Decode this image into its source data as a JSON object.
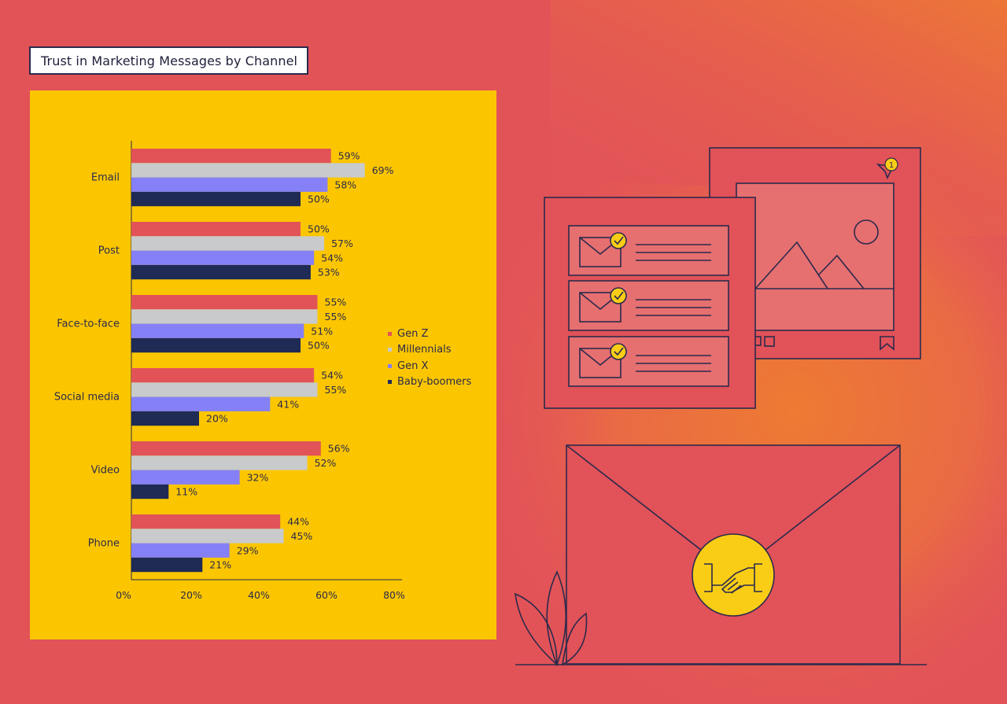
{
  "title": "Trust in Marketing Messages by Channel",
  "colors": {
    "background": "#e25358",
    "orange_glow": "#ee7a33",
    "panel": "#fbc600",
    "ink": "#2b2a4c",
    "illustration_red": "#e15259",
    "illustration_light": "#e66f70",
    "seal": "#f9cd16"
  },
  "illustration": {
    "notification_count": "1",
    "icons": [
      "send-icon",
      "bookmark-icon",
      "mail-icon",
      "check-icon",
      "handshake-icon",
      "mountain-icon",
      "sun-icon",
      "leaf-icon"
    ]
  },
  "chart_data": {
    "type": "bar",
    "orientation": "horizontal",
    "title": "Trust in Marketing Messages by Channel",
    "categories": [
      "Email",
      "Post",
      "Face-to-face",
      "Social media",
      "Video",
      "Phone"
    ],
    "series": [
      {
        "name": "Gen Z",
        "color": "#e25358",
        "values": [
          59,
          50,
          55,
          54,
          56,
          44
        ]
      },
      {
        "name": "Millennials",
        "color": "#c8cacb",
        "values": [
          69,
          57,
          55,
          55,
          52,
          45
        ]
      },
      {
        "name": "Gen X",
        "color": "#8580f5",
        "values": [
          58,
          54,
          51,
          41,
          32,
          29
        ]
      },
      {
        "name": "Baby-boomers",
        "color": "#1f2a55",
        "values": [
          50,
          53,
          50,
          20,
          11,
          21
        ]
      }
    ],
    "value_suffix": "%",
    "xlim": [
      0,
      80
    ],
    "xticks": [
      0,
      20,
      40,
      60,
      80
    ],
    "xtick_labels": [
      "0%",
      "20%",
      "40%",
      "60%",
      "80%"
    ],
    "grid": false,
    "legend_position": "right"
  }
}
